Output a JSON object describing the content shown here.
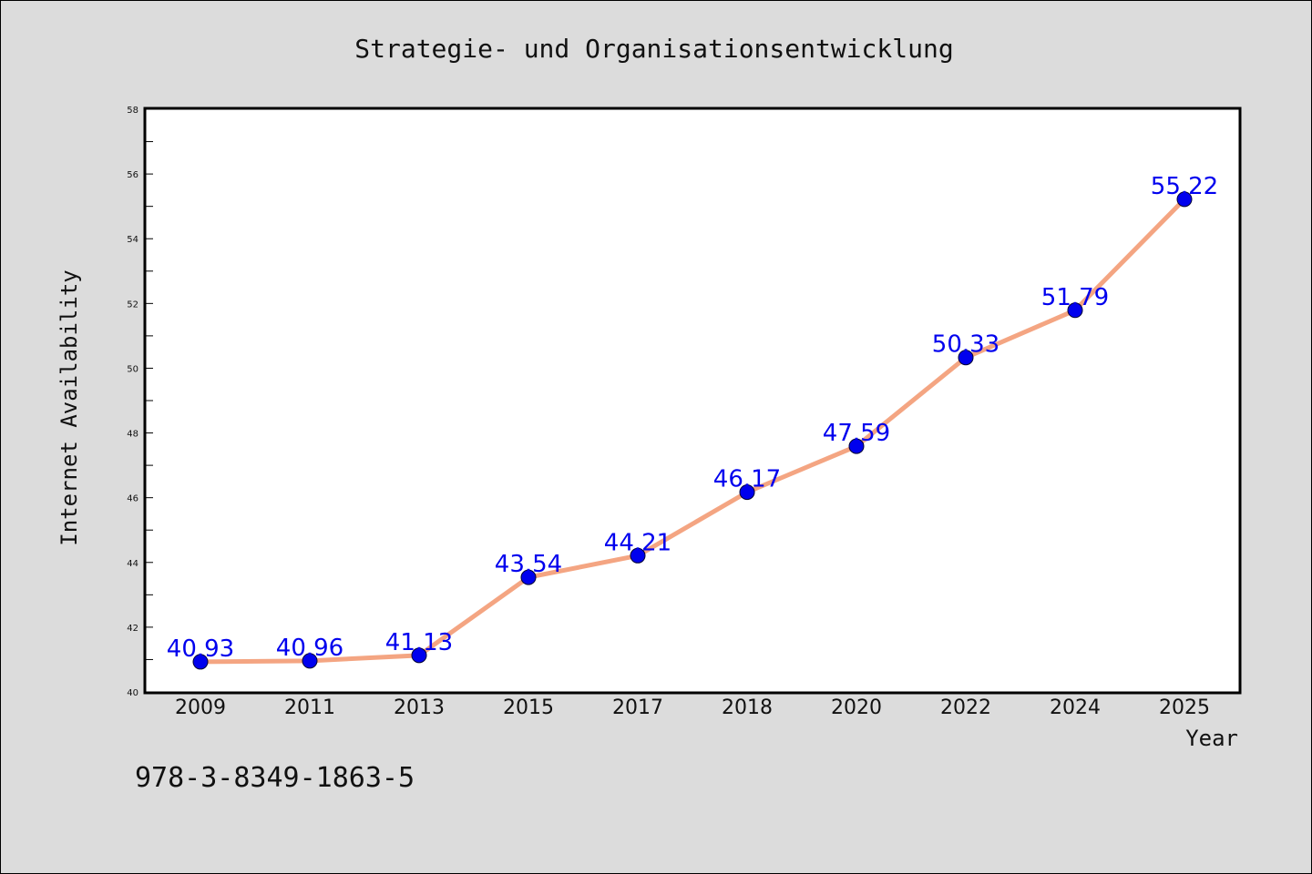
{
  "chart_data": {
    "type": "line",
    "title": "Strategie- und Organisationsentwicklung",
    "xlabel": "Year",
    "ylabel": "Internet Availability",
    "categories": [
      "2009",
      "2011",
      "2013",
      "2015",
      "2017",
      "2018",
      "2020",
      "2022",
      "2024",
      "2025"
    ],
    "values": [
      40.93,
      40.96,
      41.13,
      43.54,
      44.21,
      46.17,
      47.59,
      50.33,
      51.79,
      55.22
    ],
    "data_labels": [
      "40.93",
      "40.96",
      "41.13",
      "43.54",
      "44.21",
      "46.17",
      "47.59",
      "50.33",
      "51.79",
      "55.22"
    ],
    "ylim": [
      40,
      58
    ],
    "yticks": [
      40,
      42,
      44,
      46,
      48,
      50,
      52,
      54,
      56,
      58
    ],
    "ytick_labels": [
      "40",
      "42",
      "44",
      "46",
      "48",
      "50",
      "52",
      "54",
      "56",
      "58"
    ],
    "grid": false,
    "legend": "none",
    "colors": {
      "line": "#f4a582",
      "marker": "#0000ee",
      "data_label": "#0000ee",
      "background": "#dcdcdc",
      "plot_area": "#ffffff"
    }
  },
  "footer": {
    "isbn": "978-3-8349-1863-5"
  }
}
